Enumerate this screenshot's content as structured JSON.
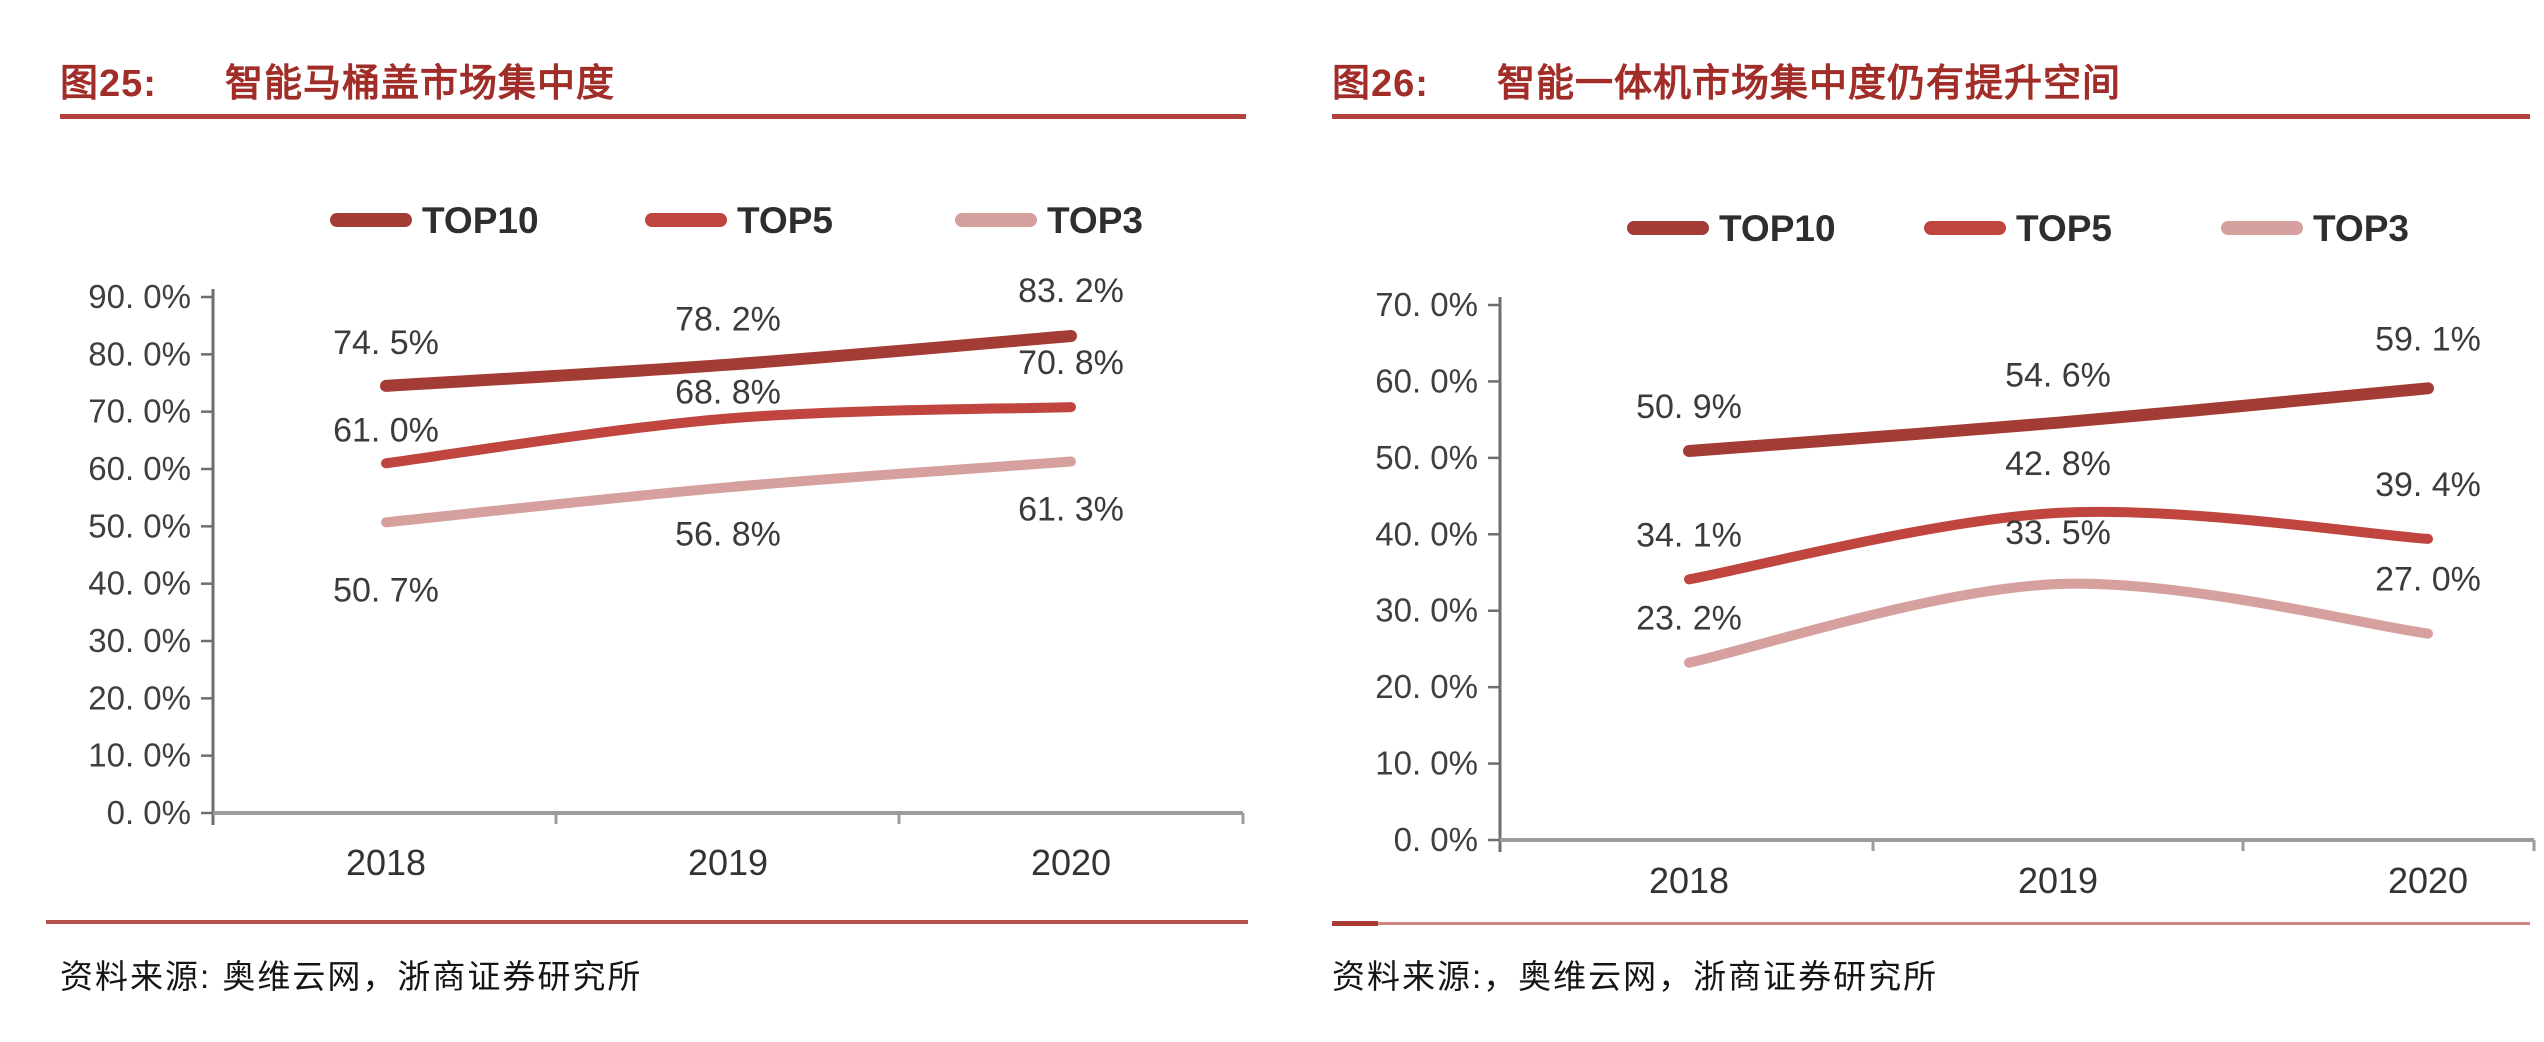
{
  "figures": [
    {
      "id": "fig25",
      "figure_label": "图25:",
      "title": "智能马桶盖市场集中度",
      "source": "资料来源: 奥维云网，浙商证券研究所",
      "chart_data": {
        "type": "line",
        "smooth": true,
        "grid": false,
        "legend_position": "top",
        "categories": [
          "2018",
          "2019",
          "2020"
        ],
        "series": [
          {
            "name": "TOP10",
            "color": "#a33c34",
            "values": [
              74.5,
              78.2,
              83.2
            ],
            "labels": [
              "74. 5%",
              "78. 2%",
              "83. 2%"
            ]
          },
          {
            "name": "TOP5",
            "color": "#bf453e",
            "values": [
              61.0,
              68.8,
              70.8
            ],
            "labels": [
              "61. 0%",
              "68. 8%",
              "70. 8%"
            ]
          },
          {
            "name": "TOP3",
            "color": "#d5a09e",
            "values": [
              50.7,
              56.8,
              61.3
            ],
            "labels": [
              "50. 7%",
              "56. 8%",
              "61. 3%"
            ]
          }
        ],
        "ylim": [
          0,
          90
        ],
        "ytick_step": 10,
        "ytick_labels": [
          "90. 0%",
          "80. 0%",
          "70. 0%",
          "60. 0%",
          "50. 0%",
          "40. 0%",
          "30. 0%",
          "20. 0%",
          "10. 0%",
          "0. 0%"
        ],
        "xlabel": "",
        "ylabel": ""
      }
    },
    {
      "id": "fig26",
      "figure_label": "图26:",
      "title": "智能一体机市场集中度仍有提升空间",
      "source": "资料来源:，奥维云网，浙商证券研究所",
      "chart_data": {
        "type": "line",
        "smooth": true,
        "grid": false,
        "legend_position": "top",
        "categories": [
          "2018",
          "2019",
          "2020"
        ],
        "series": [
          {
            "name": "TOP10",
            "color": "#a33c34",
            "values": [
              50.9,
              54.6,
              59.1
            ],
            "labels": [
              "50. 9%",
              "54. 6%",
              "59. 1%"
            ]
          },
          {
            "name": "TOP5",
            "color": "#bf453e",
            "values": [
              34.1,
              42.8,
              39.4
            ],
            "labels": [
              "34. 1%",
              "42. 8%",
              "39. 4%"
            ]
          },
          {
            "name": "TOP3",
            "color": "#d5a09e",
            "values": [
              23.2,
              33.5,
              27.0
            ],
            "labels": [
              "23. 2%",
              "33. 5%",
              "27. 0%"
            ]
          }
        ],
        "ylim": [
          0,
          70
        ],
        "ytick_step": 10,
        "ytick_labels": [
          "70. 0%",
          "60. 0%",
          "50. 0%",
          "40. 0%",
          "30. 0%",
          "20. 0%",
          "10. 0%",
          "0. 0%"
        ],
        "xlabel": "",
        "ylabel": ""
      }
    }
  ]
}
